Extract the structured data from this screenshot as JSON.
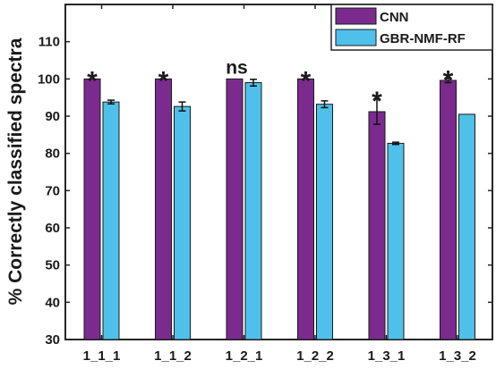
{
  "chart_data": {
    "type": "bar",
    "ylabel": "% Correctly classified spectra",
    "xlabel": "",
    "ylim": [
      30,
      120
    ],
    "yticks": [
      30,
      40,
      50,
      60,
      70,
      80,
      90,
      100,
      110
    ],
    "grid": false,
    "legend_position": "top-right",
    "categories": [
      "1_1_1",
      "1_1_2",
      "1_2_1",
      "1_2_2",
      "1_3_1",
      "1_3_2"
    ],
    "series": [
      {
        "name": "CNN",
        "color": "#7b2b8e",
        "values": [
          100,
          100,
          100,
          100,
          91.2,
          99.6
        ],
        "errors": [
          0,
          0,
          0,
          0,
          3.4,
          0.6
        ]
      },
      {
        "name": "GBR-NMF-RF",
        "color": "#4fc0ea",
        "values": [
          93.8,
          92.6,
          99.0,
          93.2,
          82.7,
          90.5
        ],
        "errors": [
          0.5,
          1.2,
          0.9,
          0.9,
          0.3,
          0
        ]
      }
    ],
    "annotations": [
      "*",
      "*",
      "ns",
      "*",
      "*",
      "*"
    ]
  }
}
